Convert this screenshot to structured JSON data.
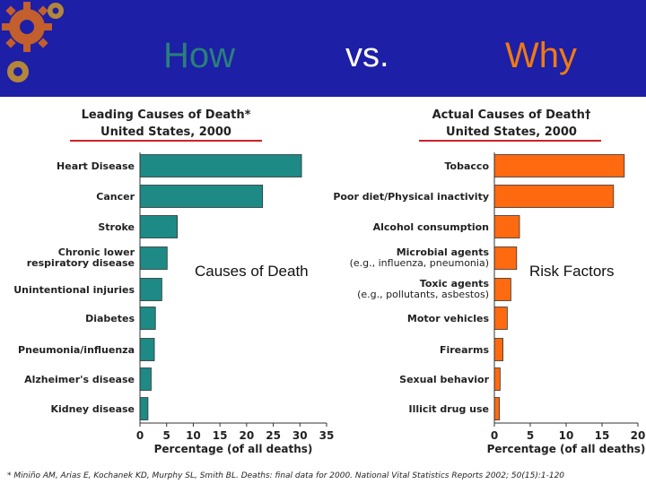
{
  "header": {
    "how": "How",
    "vs": "vs.",
    "why": "Why"
  },
  "overlays": {
    "left": "Causes of Death",
    "right": "Risk Factors"
  },
  "footnote": "* Miniño AM, Arias E, Kochanek KD, Murphy SL, Smith BL. Deaths: final data for 2000. National Vital Statistics Reports 2002; 50(15):1-120",
  "colors": {
    "header_bg": "#1d1fa6",
    "left_bar": "#1d8a86",
    "right_bar": "#ff6a10",
    "title_rule": "#d0202a"
  },
  "chart_data": [
    {
      "type": "bar",
      "orientation": "horizontal",
      "title": "Leading Causes of Death*",
      "subtitle": "United States, 2000",
      "xlabel": "Percentage (of all deaths)",
      "xlim": [
        0,
        35
      ],
      "xticks": [
        0,
        5,
        10,
        15,
        20,
        25,
        30,
        35
      ],
      "categories": [
        [
          "Heart Disease"
        ],
        [
          "Cancer"
        ],
        [
          "Stroke"
        ],
        [
          "Chronic lower",
          "respiratory disease"
        ],
        [
          "Unintentional injuries"
        ],
        [
          "Diabetes"
        ],
        [
          "Pneumonia/influenza"
        ],
        [
          "Alzheimer's disease"
        ],
        [
          "Kidney disease"
        ]
      ],
      "values": [
        30.3,
        23.0,
        7.0,
        5.1,
        4.1,
        2.9,
        2.7,
        2.1,
        1.5
      ]
    },
    {
      "type": "bar",
      "orientation": "horizontal",
      "title": "Actual Causes of Death†",
      "subtitle": "United States, 2000",
      "xlabel": "Percentage (of all deaths)",
      "xlim": [
        0,
        20
      ],
      "xticks": [
        0,
        5,
        10,
        15,
        20
      ],
      "categories": [
        [
          "Tobacco"
        ],
        [
          "Poor diet/Physical inactivity"
        ],
        [
          "Alcohol consumption"
        ],
        [
          "Microbial agents",
          "(e.g., influenza, pneumonia)"
        ],
        [
          "Toxic agents",
          "(e.g., pollutants, asbestos)"
        ],
        [
          "Motor vehicles"
        ],
        [
          "Firearms"
        ],
        [
          "Sexual behavior"
        ],
        [
          "Illicit drug use"
        ]
      ],
      "values": [
        18.1,
        16.6,
        3.5,
        3.1,
        2.3,
        1.8,
        1.2,
        0.8,
        0.7
      ]
    }
  ]
}
